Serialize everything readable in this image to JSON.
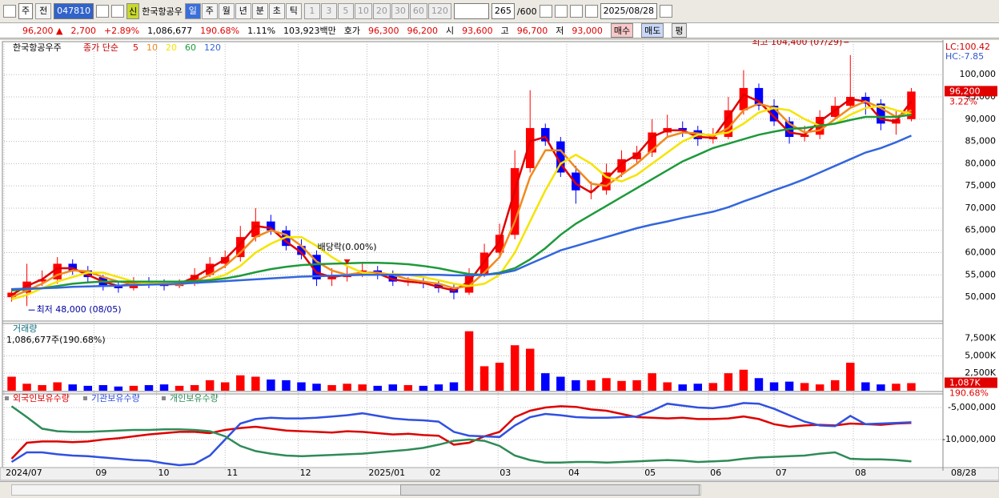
{
  "toolbar": {
    "market": "주",
    "compare": "전",
    "code": "047810",
    "badge": "신",
    "name": "한국항공우",
    "periods": [
      "일",
      "주",
      "월",
      "년",
      "분",
      "초",
      "틱"
    ],
    "intervals": [
      "1",
      "3",
      "5",
      "10",
      "20",
      "30",
      "60",
      "120"
    ],
    "count": "265",
    "max_count": "/600",
    "date": "2025/08/28"
  },
  "info_bar": {
    "price": "96,200",
    "change_sign": "▲",
    "change": "2,700",
    "change_rate": "+2.89%",
    "volume": "1,086,677",
    "volume_rate": "190.68%",
    "turnover_rate": "1.11%",
    "amount": "103,923백만",
    "quote_label": "호가",
    "ask": "96,300",
    "bid": "96,200",
    "open_label": "시",
    "open": "93,600",
    "high_label": "고",
    "high": "96,700",
    "low_label": "저",
    "low": "93,000",
    "buttons": [
      "매수",
      "매도",
      "평"
    ]
  },
  "chart_data": [
    {
      "type": "candlestick",
      "title": "한국항공우주",
      "legend_label": "종가 단순",
      "lc": "LC:100.42",
      "hc": "HC:-7.85",
      "last_price_label": "96,200",
      "last_change_label": "3.22%",
      "last_date": "08/28",
      "high_annotation": "최고 104,400 (07/29)",
      "low_annotation": "최저 48,000 (08/05)",
      "dividend_annotation": "배당락(0.00%)",
      "up_color": "#ff0000",
      "down_color": "#0000ff",
      "grid": true,
      "xlim": [
        0,
        60
      ],
      "xticks": [
        {
          "value": 0,
          "label": "2024/07"
        },
        {
          "value": 5.9,
          "label": "09"
        },
        {
          "value": 10,
          "label": "10"
        },
        {
          "value": 14.5,
          "label": "11"
        },
        {
          "value": 19.3,
          "label": "12"
        },
        {
          "value": 23.8,
          "label": "2025/01"
        },
        {
          "value": 27.8,
          "label": "02"
        },
        {
          "value": 32.4,
          "label": "03"
        },
        {
          "value": 36.9,
          "label": "04"
        },
        {
          "value": 41.9,
          "label": "05"
        },
        {
          "value": 46.2,
          "label": "06"
        },
        {
          "value": 50.5,
          "label": "07"
        },
        {
          "value": 55.7,
          "label": "08"
        }
      ],
      "ylim": [
        44800,
        106700
      ],
      "yticks": [
        {
          "value": 100000,
          "label": "100,000"
        },
        {
          "value": 95000,
          "label": "95,000"
        },
        {
          "value": 90000,
          "label": "90,000"
        },
        {
          "value": 85000,
          "label": "85,000"
        },
        {
          "value": 80000,
          "label": "80,000"
        },
        {
          "value": 75000,
          "label": "75,000"
        },
        {
          "value": 70000,
          "label": "70,000"
        },
        {
          "value": 65000,
          "label": "65,000"
        },
        {
          "value": 60000,
          "label": "60,000"
        },
        {
          "value": 55000,
          "label": "55,000"
        },
        {
          "value": 50000,
          "label": "50,000"
        }
      ],
      "open": [
        50000,
        51000,
        53500,
        54000,
        57500,
        56000,
        54500,
        52500,
        52000,
        53500,
        53000,
        52500,
        53000,
        55000,
        57500,
        59000,
        63500,
        67000,
        65000,
        61500,
        59500,
        54000,
        54500,
        55000,
        56000,
        55000,
        53500,
        53500,
        53000,
        52000,
        51000,
        55000,
        60000,
        64000,
        79000,
        88000,
        85000,
        78000,
        74000,
        74000,
        78000,
        81000,
        82500,
        87000,
        88000,
        87500,
        85500,
        86000,
        92000,
        97000,
        93000,
        89500,
        86000,
        86500,
        90500,
        93000,
        95000,
        93500,
        89000,
        90000
      ],
      "high": [
        52000,
        57500,
        56000,
        59000,
        58500,
        57000,
        55000,
        53500,
        54500,
        54500,
        54000,
        54000,
        56500,
        59000,
        60500,
        66000,
        70000,
        68500,
        66000,
        63000,
        60500,
        56500,
        57000,
        57500,
        57000,
        56000,
        54500,
        54500,
        54000,
        53000,
        56500,
        62000,
        66500,
        83000,
        96500,
        89000,
        86000,
        79500,
        76000,
        80000,
        83000,
        84000,
        90000,
        91000,
        89500,
        88500,
        88000,
        95000,
        101000,
        98000,
        94500,
        90500,
        88500,
        92000,
        95000,
        104400,
        96000,
        94500,
        92000,
        97000
      ],
      "low": [
        49000,
        48000,
        52500,
        53000,
        55000,
        53500,
        51500,
        51000,
        51500,
        52000,
        51500,
        52000,
        52500,
        54500,
        56500,
        58000,
        62500,
        64000,
        60500,
        58500,
        52500,
        52500,
        53500,
        54500,
        54000,
        52500,
        52500,
        52000,
        51000,
        49500,
        50500,
        54500,
        59000,
        63000,
        78000,
        84000,
        77000,
        71000,
        72000,
        73000,
        77000,
        80000,
        81500,
        86000,
        86000,
        84000,
        84500,
        85500,
        91000,
        92000,
        88500,
        84500,
        85000,
        85500,
        90000,
        92500,
        91000,
        87500,
        86500,
        89500
      ],
      "close": [
        51000,
        53500,
        54000,
        57500,
        56000,
        54500,
        52500,
        52000,
        53500,
        53000,
        52500,
        53000,
        55000,
        57500,
        59000,
        63500,
        67000,
        65000,
        61500,
        59500,
        54000,
        54500,
        55000,
        56000,
        55000,
        53500,
        53500,
        53000,
        52000,
        51000,
        55000,
        60000,
        64000,
        79000,
        88000,
        85000,
        78000,
        74000,
        74000,
        78000,
        81000,
        82500,
        87000,
        88000,
        87500,
        85500,
        86000,
        92000,
        97000,
        93000,
        89500,
        86000,
        86500,
        90500,
        93000,
        95000,
        93500,
        89000,
        90000,
        96200
      ],
      "series": [
        {
          "name": "5",
          "color": "#e00000",
          "values": [
            50500,
            52500,
            54000,
            56500,
            56500,
            55000,
            53500,
            52500,
            53000,
            53000,
            52800,
            53000,
            54500,
            56500,
            58500,
            62000,
            66000,
            65500,
            62500,
            60000,
            55500,
            54500,
            55000,
            55500,
            55300,
            54000,
            53500,
            53200,
            52300,
            51500,
            53500,
            58000,
            62500,
            74000,
            85000,
            86000,
            80000,
            75500,
            73500,
            76500,
            80000,
            82000,
            86000,
            87500,
            87500,
            86000,
            85800,
            90500,
            95500,
            94000,
            90500,
            87000,
            86500,
            89500,
            92000,
            94500,
            94000,
            90000,
            89500,
            94000
          ]
        },
        {
          "name": "10",
          "color": "#f08a1c",
          "values": [
            50000,
            51500,
            53000,
            55000,
            56000,
            55800,
            54500,
            53500,
            53000,
            53000,
            53000,
            52800,
            53500,
            55000,
            57000,
            60000,
            63500,
            65000,
            64000,
            61500,
            58000,
            56000,
            55000,
            55500,
            55500,
            55000,
            54000,
            53500,
            53000,
            52000,
            52500,
            55500,
            59000,
            67000,
            77000,
            83000,
            83000,
            79000,
            75500,
            75000,
            77500,
            80000,
            83000,
            86000,
            87000,
            86800,
            86200,
            88000,
            92000,
            93500,
            92500,
            89000,
            87000,
            87500,
            90000,
            92500,
            94000,
            92500,
            90500,
            92000
          ]
        },
        {
          "name": "20",
          "color": "#f5e400",
          "values": [
            49500,
            50500,
            52000,
            53500,
            54500,
            55500,
            55500,
            54500,
            53500,
            53000,
            53000,
            53000,
            53200,
            54000,
            55000,
            57000,
            60000,
            62000,
            63500,
            63500,
            61500,
            59000,
            57000,
            55500,
            55000,
            55200,
            55000,
            54500,
            53800,
            53000,
            52500,
            53000,
            55000,
            60000,
            67000,
            74000,
            80000,
            82000,
            80000,
            77000,
            76000,
            77500,
            80000,
            82500,
            85000,
            86500,
            86500,
            87000,
            89000,
            91500,
            92500,
            92000,
            90000,
            88500,
            89000,
            91000,
            92500,
            93000,
            92000,
            91200
          ]
        },
        {
          "name": "60",
          "color": "#1e9a3a",
          "values": [
            51500,
            51800,
            52000,
            52500,
            53000,
            53300,
            53500,
            53500,
            53500,
            53500,
            53500,
            53500,
            53600,
            53800,
            54200,
            54800,
            55600,
            56300,
            56800,
            57200,
            57400,
            57500,
            57600,
            57700,
            57700,
            57600,
            57400,
            57000,
            56500,
            55800,
            55200,
            55000,
            55500,
            56500,
            58500,
            61000,
            64000,
            66500,
            68500,
            70500,
            72500,
            74500,
            76500,
            78500,
            80500,
            82000,
            83500,
            84500,
            85500,
            86500,
            87200,
            87800,
            88000,
            88500,
            89000,
            89800,
            90500,
            90500,
            90500,
            91000
          ]
        },
        {
          "name": "120",
          "color": "#3366dd",
          "values": [
            51800,
            51900,
            52000,
            52100,
            52300,
            52400,
            52500,
            52600,
            52700,
            52800,
            52900,
            53000,
            53200,
            53400,
            53600,
            53800,
            54000,
            54200,
            54400,
            54600,
            54700,
            54800,
            54900,
            55000,
            55000,
            55000,
            55000,
            55000,
            55000,
            54900,
            54900,
            55000,
            55300,
            56000,
            57500,
            59000,
            60500,
            61500,
            62500,
            63500,
            64500,
            65500,
            66300,
            67000,
            67800,
            68500,
            69200,
            70200,
            71500,
            72700,
            74000,
            75200,
            76500,
            78000,
            79500,
            81000,
            82500,
            83500,
            84800,
            86300
          ]
        }
      ]
    },
    {
      "type": "bar",
      "title": "거래량",
      "subtitle": "1,086,677주(190.68%)",
      "last_value_label": "1,087K",
      "last_rate_label": "190.68%",
      "ylim": [
        0,
        9500
      ],
      "yticks": [
        {
          "value": 7500,
          "label": "7,500K"
        },
        {
          "value": 5000,
          "label": "5,000K"
        },
        {
          "value": 2500,
          "label": "2,500K"
        }
      ],
      "values": [
        2000,
        1000,
        800,
        1200,
        900,
        700,
        800,
        600,
        700,
        800,
        900,
        700,
        800,
        1500,
        1200,
        2200,
        2000,
        1600,
        1500,
        1200,
        1000,
        800,
        1000,
        900,
        700,
        900,
        800,
        700,
        900,
        1200,
        8500,
        3500,
        4000,
        6500,
        6000,
        2500,
        2000,
        1500,
        1500,
        1800,
        1400,
        1500,
        2500,
        1200,
        900,
        1000,
        1100,
        2500,
        3000,
        1800,
        1200,
        1300,
        1100,
        900,
        1500,
        4000,
        1200,
        900,
        1000,
        1087
      ]
    },
    {
      "type": "line",
      "ylim": [
        -14250000,
        -3000000
      ],
      "yticks": [
        {
          "value": -5000000,
          "label": "-5,000,000"
        },
        {
          "value": -10000000,
          "label": "-10,000,000"
        }
      ],
      "series": [
        {
          "name": "외국인보유수량",
          "color": "#dd0000",
          "values": [
            -13000000,
            -10500000,
            -10300000,
            -10300000,
            -10400000,
            -10300000,
            -10000000,
            -9800000,
            -9500000,
            -9200000,
            -9000000,
            -8800000,
            -8800000,
            -9000000,
            -8500000,
            -8200000,
            -8000000,
            -8300000,
            -8600000,
            -8700000,
            -8800000,
            -8900000,
            -8700000,
            -8800000,
            -9000000,
            -9200000,
            -9100000,
            -9300000,
            -9400000,
            -10800000,
            -10500000,
            -9500000,
            -8800000,
            -6500000,
            -5500000,
            -5000000,
            -4800000,
            -4900000,
            -5300000,
            -5500000,
            -6000000,
            -6500000,
            -6600000,
            -6700000,
            -6600000,
            -6800000,
            -6800000,
            -6700000,
            -6400000,
            -6800000,
            -7600000,
            -8000000,
            -7800000,
            -7700000,
            -7800000,
            -7500000,
            -7600000,
            -7700000,
            -7500000,
            -7400000
          ]
        },
        {
          "name": "기관보유수량",
          "color": "#3050e0",
          "values": [
            -13500000,
            -12000000,
            -12000000,
            -12300000,
            -12500000,
            -12600000,
            -12800000,
            -13000000,
            -13200000,
            -13300000,
            -13700000,
            -14000000,
            -13800000,
            -12500000,
            -10000000,
            -7500000,
            -6800000,
            -6600000,
            -6700000,
            -6700000,
            -6600000,
            -6400000,
            -6200000,
            -5900000,
            -6300000,
            -6700000,
            -6900000,
            -7000000,
            -7200000,
            -8800000,
            -9400000,
            -9500000,
            -9600000,
            -7800000,
            -6500000,
            -6000000,
            -6200000,
            -6500000,
            -6600000,
            -6600000,
            -6500000,
            -6400000,
            -5500000,
            -4400000,
            -4700000,
            -5000000,
            -5100000,
            -4800000,
            -4300000,
            -4400000,
            -5200000,
            -6200000,
            -7200000,
            -7800000,
            -7900000,
            -6300000,
            -7600000,
            -7500000,
            -7400000,
            -7300000
          ]
        },
        {
          "name": "개인보유수량",
          "color": "#2e8b57",
          "values": [
            -4800000,
            -6500000,
            -8300000,
            -8700000,
            -8800000,
            -8800000,
            -8700000,
            -8600000,
            -8500000,
            -8500000,
            -8400000,
            -8400000,
            -8500000,
            -8700000,
            -9500000,
            -11000000,
            -11800000,
            -12200000,
            -12500000,
            -12600000,
            -12500000,
            -12400000,
            -12300000,
            -12200000,
            -12000000,
            -11800000,
            -11600000,
            -11300000,
            -10800000,
            -10200000,
            -10000000,
            -10200000,
            -11000000,
            -12500000,
            -13200000,
            -13600000,
            -13600000,
            -13500000,
            -13500000,
            -13600000,
            -13500000,
            -13400000,
            -13300000,
            -13200000,
            -13300000,
            -13500000,
            -13400000,
            -13300000,
            -13000000,
            -12800000,
            -12700000,
            -12600000,
            -12500000,
            -12200000,
            -12000000,
            -13000000,
            -13100000,
            -13100000,
            -13200000,
            -13400000
          ]
        }
      ]
    }
  ]
}
